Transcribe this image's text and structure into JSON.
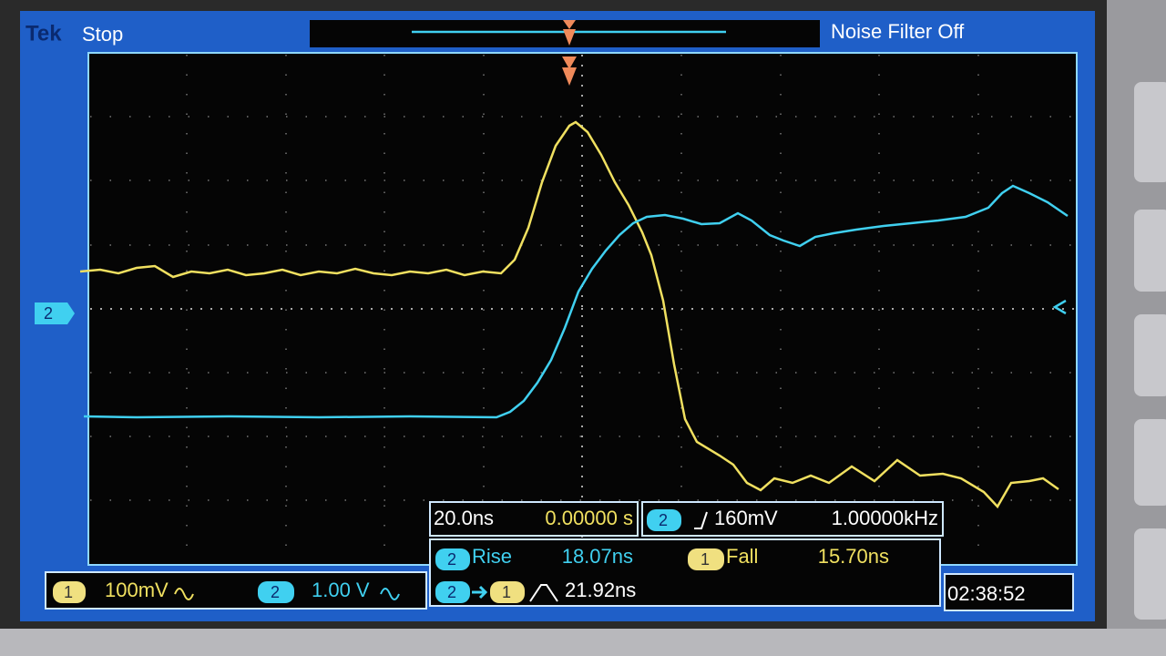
{
  "status": {
    "brand": "Tek",
    "state": "Stop",
    "filter": "Noise Filter Off"
  },
  "left_marker": "2",
  "channels": [
    {
      "badge": "1",
      "scale": "100mV"
    },
    {
      "badge": "2",
      "scale": "1.00 V"
    }
  ],
  "timebase": {
    "scale": "20.0ns",
    "position": "0.00000 s"
  },
  "trigger": {
    "badge": "2",
    "level": "160mV",
    "frequency": "1.00000kHz"
  },
  "measurements": {
    "rise": {
      "badge": "2",
      "label": "Rise",
      "value": "18.07ns"
    },
    "fall": {
      "badge": "1",
      "label": "Fall",
      "value": "15.70ns"
    },
    "delay": {
      "from": "2",
      "to": "1",
      "value": "21.92ns"
    }
  },
  "clock": "02:38:52"
}
